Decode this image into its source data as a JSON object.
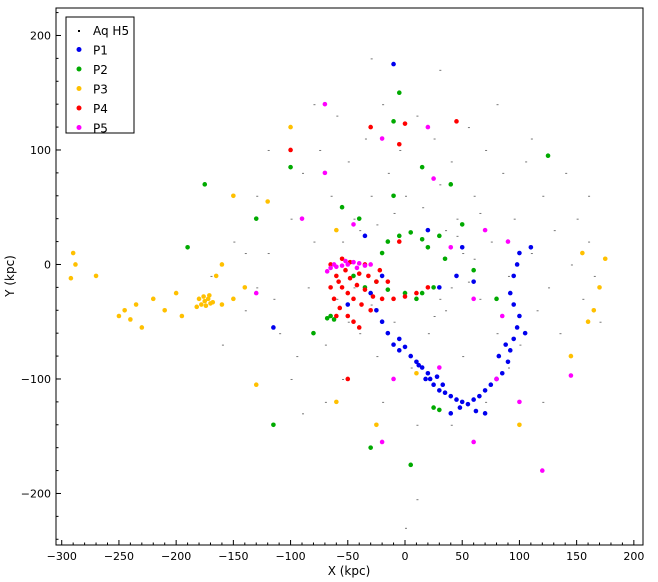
{
  "chart_data": {
    "type": "scatter",
    "title": "",
    "xlabel": "X (kpc)",
    "ylabel": "Y (kpc)",
    "xlim": [
      -305,
      208
    ],
    "ylim": [
      -245,
      224
    ],
    "xticks": [
      -300,
      -250,
      -200,
      -150,
      -100,
      -50,
      0,
      50,
      100,
      150,
      200
    ],
    "yticks": [
      -200,
      -100,
      0,
      100,
      200
    ],
    "grid": false,
    "legend_position": "top-left",
    "series": [
      {
        "name": "Aq H5",
        "color": "#000000",
        "marker": "dot",
        "points": [
          [
            -170,
            -10
          ],
          [
            -150,
            20
          ],
          [
            -140,
            -40
          ],
          [
            -130,
            60
          ],
          [
            -120,
            10
          ],
          [
            -110,
            -60
          ],
          [
            -100,
            40
          ],
          [
            -95,
            -80
          ],
          [
            -90,
            80
          ],
          [
            -85,
            -20
          ],
          [
            -80,
            20
          ],
          [
            -75,
            100
          ],
          [
            -70,
            -70
          ],
          [
            -65,
            60
          ],
          [
            -60,
            130
          ],
          [
            -55,
            -100
          ],
          [
            -50,
            90
          ],
          [
            -45,
            40
          ],
          [
            -40,
            -60
          ],
          [
            -35,
            110
          ],
          [
            -30,
            60
          ],
          [
            -25,
            -80
          ],
          [
            -20,
            140
          ],
          [
            -15,
            80
          ],
          [
            -10,
            -50
          ],
          [
            -5,
            100
          ],
          [
            0,
            60
          ],
          [
            5,
            -90
          ],
          [
            10,
            130
          ],
          [
            15,
            50
          ],
          [
            20,
            -60
          ],
          [
            25,
            110
          ],
          [
            30,
            70
          ],
          [
            35,
            -40
          ],
          [
            40,
            90
          ],
          [
            45,
            40
          ],
          [
            50,
            -80
          ],
          [
            55,
            120
          ],
          [
            60,
            60
          ],
          [
            65,
            -30
          ],
          [
            70,
            100
          ],
          [
            75,
            20
          ],
          [
            80,
            -60
          ],
          [
            85,
            80
          ],
          [
            90,
            -10
          ],
          [
            95,
            40
          ],
          [
            100,
            -70
          ],
          [
            105,
            90
          ],
          [
            110,
            10
          ],
          [
            115,
            -40
          ],
          [
            120,
            60
          ],
          [
            125,
            -20
          ],
          [
            130,
            30
          ],
          [
            135,
            -60
          ],
          [
            140,
            80
          ],
          [
            145,
            0
          ],
          [
            150,
            40
          ],
          [
            155,
            -30
          ],
          [
            160,
            20
          ],
          [
            165,
            -10
          ],
          [
            -60,
            -30
          ],
          [
            -55,
            20
          ],
          [
            -45,
            -20
          ],
          [
            -40,
            30
          ],
          [
            -30,
            -35
          ],
          [
            -25,
            35
          ],
          [
            30,
            -30
          ],
          [
            35,
            30
          ],
          [
            40,
            -20
          ],
          [
            45,
            25
          ],
          [
            50,
            10
          ],
          [
            55,
            -15
          ],
          [
            60,
            5
          ],
          [
            -50,
            -50
          ],
          [
            -20,
            -120
          ],
          [
            10,
            -140
          ],
          [
            40,
            -140
          ],
          [
            70,
            -120
          ],
          [
            -100,
            -100
          ],
          [
            -120,
            100
          ],
          [
            -160,
            -70
          ],
          [
            170,
            -50
          ],
          [
            160,
            60
          ],
          [
            -30,
            180
          ],
          [
            30,
            170
          ],
          [
            0,
            -230
          ],
          [
            10,
            -205
          ],
          [
            -80,
            140
          ],
          [
            80,
            140
          ],
          [
            120,
            -120
          ],
          [
            -130,
            -20
          ],
          [
            -115,
            -30
          ],
          [
            -140,
            10
          ],
          [
            65,
            45
          ],
          [
            25,
            -45
          ],
          [
            -10,
            45
          ],
          [
            90,
            -90
          ],
          [
            -70,
            -120
          ],
          [
            110,
            110
          ],
          [
            -90,
            -130
          ]
        ]
      },
      {
        "name": "P1",
        "color": "#0000ee",
        "marker": "circle",
        "points": [
          [
            -10,
            175
          ],
          [
            -115,
            -55
          ],
          [
            -25,
            -40
          ],
          [
            -20,
            -50
          ],
          [
            -15,
            -60
          ],
          [
            -10,
            -70
          ],
          [
            -5,
            -75
          ],
          [
            0,
            -72
          ],
          [
            5,
            -80
          ],
          [
            10,
            -85
          ],
          [
            15,
            -90
          ],
          [
            20,
            -95
          ],
          [
            22,
            -100
          ],
          [
            25,
            -105
          ],
          [
            28,
            -98
          ],
          [
            30,
            -110
          ],
          [
            35,
            -112
          ],
          [
            40,
            -115
          ],
          [
            45,
            -118
          ],
          [
            50,
            -120
          ],
          [
            55,
            -122
          ],
          [
            60,
            -118
          ],
          [
            65,
            -115
          ],
          [
            70,
            -110
          ],
          [
            75,
            -105
          ],
          [
            80,
            -100
          ],
          [
            85,
            -95
          ],
          [
            90,
            -85
          ],
          [
            92,
            -75
          ],
          [
            95,
            -65
          ],
          [
            98,
            -55
          ],
          [
            100,
            -45
          ],
          [
            95,
            -35
          ],
          [
            92,
            -25
          ],
          [
            95,
            -10
          ],
          [
            98,
            0
          ],
          [
            100,
            10
          ],
          [
            -5,
            -65
          ],
          [
            12,
            -88
          ],
          [
            18,
            -100
          ],
          [
            33,
            -105
          ],
          [
            48,
            -125
          ],
          [
            62,
            -128
          ],
          [
            82,
            -80
          ],
          [
            88,
            -70
          ],
          [
            105,
            -60
          ],
          [
            -30,
            -25
          ],
          [
            -50,
            -35
          ],
          [
            30,
            -20
          ],
          [
            45,
            -10
          ],
          [
            50,
            15
          ],
          [
            -35,
            25
          ],
          [
            20,
            30
          ],
          [
            -20,
            -10
          ],
          [
            60,
            -15
          ],
          [
            110,
            15
          ],
          [
            40,
            -130
          ],
          [
            70,
            -130
          ]
        ]
      },
      {
        "name": "P2",
        "color": "#00aa00",
        "marker": "circle",
        "points": [
          [
            -5,
            150
          ],
          [
            -10,
            125
          ],
          [
            -175,
            70
          ],
          [
            -190,
            15
          ],
          [
            125,
            95
          ],
          [
            30,
            -127
          ],
          [
            25,
            -125
          ],
          [
            -68,
            -47
          ],
          [
            -65,
            -45
          ],
          [
            -62,
            -48
          ],
          [
            -5,
            25
          ],
          [
            5,
            28
          ],
          [
            15,
            22
          ],
          [
            -15,
            20
          ],
          [
            20,
            15
          ],
          [
            -20,
            10
          ],
          [
            25,
            -20
          ],
          [
            15,
            -25
          ],
          [
            0,
            -25
          ],
          [
            -15,
            -22
          ],
          [
            35,
            5
          ],
          [
            -25,
            -15
          ],
          [
            10,
            -30
          ],
          [
            40,
            70
          ],
          [
            -100,
            85
          ],
          [
            -40,
            40
          ],
          [
            -55,
            50
          ],
          [
            60,
            -5
          ],
          [
            80,
            -30
          ],
          [
            -80,
            -60
          ],
          [
            -130,
            40
          ],
          [
            -30,
            -160
          ],
          [
            5,
            -175
          ],
          [
            -115,
            -140
          ],
          [
            -10,
            60
          ],
          [
            50,
            35
          ],
          [
            -35,
            -20
          ],
          [
            30,
            25
          ],
          [
            -45,
            -10
          ],
          [
            15,
            85
          ]
        ]
      },
      {
        "name": "P3",
        "color": "#ffc000",
        "marker": "circle",
        "points": [
          [
            -175,
            -32
          ],
          [
            -172,
            -30
          ],
          [
            -178,
            -35
          ],
          [
            -170,
            -34
          ],
          [
            -180,
            -30
          ],
          [
            -176,
            -28
          ],
          [
            -168,
            -33
          ],
          [
            -182,
            -37
          ],
          [
            -174,
            -36
          ],
          [
            -171,
            -27
          ],
          [
            -290,
            10
          ],
          [
            -288,
            0
          ],
          [
            -292,
            -12
          ],
          [
            -270,
            -10
          ],
          [
            -250,
            -45
          ],
          [
            -245,
            -40
          ],
          [
            -240,
            -48
          ],
          [
            -235,
            -35
          ],
          [
            -230,
            -55
          ],
          [
            -220,
            -30
          ],
          [
            -210,
            -40
          ],
          [
            -200,
            -25
          ],
          [
            -195,
            -45
          ],
          [
            -160,
            -35
          ],
          [
            -150,
            -30
          ],
          [
            -140,
            -20
          ],
          [
            -160,
            0
          ],
          [
            -165,
            -10
          ],
          [
            -130,
            -105
          ],
          [
            -60,
            -120
          ],
          [
            -25,
            -140
          ],
          [
            160,
            -50
          ],
          [
            165,
            -40
          ],
          [
            170,
            -20
          ],
          [
            175,
            5
          ],
          [
            155,
            10
          ],
          [
            145,
            -80
          ],
          [
            100,
            -140
          ],
          [
            -100,
            120
          ],
          [
            -150,
            60
          ],
          [
            -120,
            55
          ],
          [
            -60,
            30
          ],
          [
            10,
            -95
          ]
        ]
      },
      {
        "name": "P4",
        "color": "#ff0000",
        "marker": "circle",
        "points": [
          [
            -60,
            -10
          ],
          [
            -58,
            -15
          ],
          [
            -55,
            -20
          ],
          [
            -52,
            -5
          ],
          [
            -50,
            -25
          ],
          [
            -48,
            -12
          ],
          [
            -45,
            -30
          ],
          [
            -42,
            -18
          ],
          [
            -40,
            -8
          ],
          [
            -38,
            -35
          ],
          [
            -35,
            -22
          ],
          [
            -32,
            -10
          ],
          [
            -30,
            -40
          ],
          [
            -28,
            -28
          ],
          [
            -25,
            -15
          ],
          [
            -22,
            -5
          ],
          [
            -20,
            -30
          ],
          [
            -62,
            -30
          ],
          [
            -57,
            -38
          ],
          [
            -50,
            -45
          ],
          [
            -45,
            -50
          ],
          [
            -40,
            -55
          ],
          [
            -55,
            5
          ],
          [
            -48,
            2
          ],
          [
            -35,
            0
          ],
          [
            -65,
            -20
          ],
          [
            -10,
            -30
          ],
          [
            0,
            -28
          ],
          [
            10,
            -25
          ],
          [
            20,
            -20
          ],
          [
            -5,
            20
          ],
          [
            0,
            123
          ],
          [
            -5,
            105
          ],
          [
            -30,
            120
          ],
          [
            45,
            125
          ],
          [
            -100,
            100
          ],
          [
            -50,
            -100
          ],
          [
            -60,
            -45
          ],
          [
            -65,
            0
          ],
          [
            -15,
            -15
          ]
        ]
      },
      {
        "name": "P5",
        "color": "#ff00ff",
        "marker": "circle",
        "points": [
          [
            -65,
            -3
          ],
          [
            -60,
            -2
          ],
          [
            -55,
            -1
          ],
          [
            -50,
            0
          ],
          [
            -45,
            2
          ],
          [
            -40,
            1
          ],
          [
            -35,
            -1
          ],
          [
            -30,
            0
          ],
          [
            -62,
            0
          ],
          [
            -52,
            3
          ],
          [
            -42,
            -3
          ],
          [
            -68,
            -6
          ],
          [
            145,
            -97
          ],
          [
            120,
            -180
          ],
          [
            -20,
            -155
          ],
          [
            60,
            -155
          ],
          [
            80,
            -100
          ],
          [
            30,
            -90
          ],
          [
            -70,
            80
          ],
          [
            -90,
            40
          ],
          [
            -130,
            -25
          ],
          [
            -70,
            140
          ],
          [
            25,
            75
          ],
          [
            90,
            20
          ],
          [
            70,
            30
          ],
          [
            60,
            -30
          ],
          [
            20,
            120
          ],
          [
            -20,
            110
          ],
          [
            40,
            15
          ],
          [
            -45,
            35
          ],
          [
            100,
            -120
          ],
          [
            85,
            -45
          ],
          [
            -10,
            -100
          ]
        ]
      }
    ]
  }
}
